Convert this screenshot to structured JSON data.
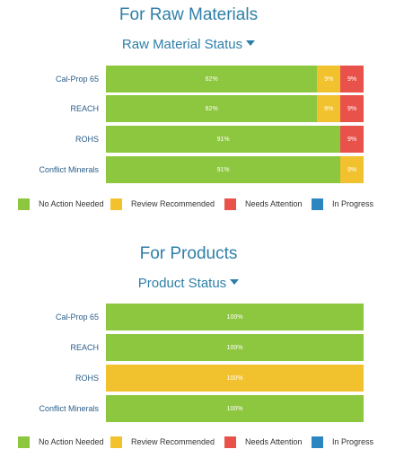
{
  "colors": {
    "no_action": "#8dc63f",
    "review": "#f2c12e",
    "attention": "#e8524a",
    "in_progress": "#2e86c1"
  },
  "legend": [
    {
      "label": "No Action Needed",
      "key": "no_action"
    },
    {
      "label": "Review Recommended",
      "key": "review"
    },
    {
      "label": "Needs Attention",
      "key": "attention"
    },
    {
      "label": "In Progress",
      "key": "in_progress"
    }
  ],
  "raw": {
    "title": "For Raw Materials",
    "dropdown": "Raw Material Status"
  },
  "products": {
    "title": "For Products",
    "dropdown": "Product Status"
  },
  "chart_data": [
    {
      "type": "bar",
      "orientation": "horizontal",
      "stacked": "percent",
      "categories": [
        "Cal-Prop 65",
        "REACH",
        "ROHS",
        "Conflict Minerals"
      ],
      "series": [
        {
          "name": "No Action Needed",
          "values": [
            82,
            82,
            91,
            91
          ],
          "labels": [
            "82%",
            "82%",
            "91%",
            "91%"
          ]
        },
        {
          "name": "Review Recommended",
          "values": [
            9,
            9,
            0,
            9
          ],
          "labels": [
            "9%",
            "9%",
            "",
            "9%"
          ]
        },
        {
          "name": "Needs Attention",
          "values": [
            9,
            9,
            9,
            0
          ],
          "labels": [
            "9%",
            "9%",
            "9%",
            ""
          ]
        },
        {
          "name": "In Progress",
          "values": [
            0,
            0,
            0,
            0
          ],
          "labels": [
            "",
            "",
            "",
            ""
          ]
        }
      ],
      "legend_position": "bottom"
    },
    {
      "type": "bar",
      "orientation": "horizontal",
      "stacked": "percent",
      "categories": [
        "Cal-Prop 65",
        "REACH",
        "ROHS",
        "Conflict Minerals"
      ],
      "series": [
        {
          "name": "No Action Needed",
          "values": [
            100,
            100,
            0,
            100
          ],
          "labels": [
            "100%",
            "100%",
            "",
            "100%"
          ]
        },
        {
          "name": "Review Recommended",
          "values": [
            0,
            0,
            100,
            0
          ],
          "labels": [
            "",
            "",
            "100%",
            ""
          ]
        },
        {
          "name": "Needs Attention",
          "values": [
            0,
            0,
            0,
            0
          ],
          "labels": [
            "",
            "",
            "",
            ""
          ]
        },
        {
          "name": "In Progress",
          "values": [
            0,
            0,
            0,
            0
          ],
          "labels": [
            "",
            "",
            "",
            ""
          ]
        }
      ],
      "legend_position": "bottom"
    }
  ]
}
